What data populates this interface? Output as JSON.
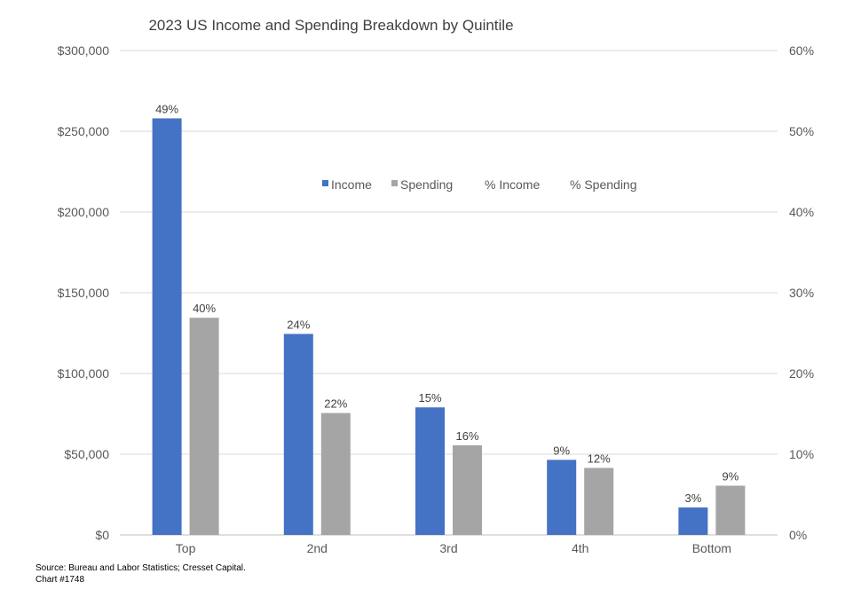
{
  "chart_data": {
    "type": "bar",
    "title": "2023 US Income and Spending Breakdown by Quintile",
    "categories": [
      "Top",
      "2nd",
      "3rd",
      "4th",
      "Bottom"
    ],
    "series": [
      {
        "name": "Income",
        "values": [
          258000,
          124500,
          79000,
          46500,
          17000
        ],
        "color": "#4472C4"
      },
      {
        "name": "Spending",
        "values": [
          134500,
          75500,
          55500,
          41500,
          30500
        ],
        "color": "#A5A5A5"
      }
    ],
    "secondary_series": [
      {
        "name": "% Income",
        "values": [
          49,
          24,
          15,
          9,
          3
        ],
        "shown_as": "data labels on Income bars"
      },
      {
        "name": "% Spending",
        "values": [
          40,
          22,
          16,
          12,
          9
        ],
        "shown_as": "data labels on Spending bars"
      }
    ],
    "data_labels": {
      "Income": [
        "49%",
        "24%",
        "15%",
        "9%",
        "3%"
      ],
      "Spending": [
        "40%",
        "22%",
        "16%",
        "12%",
        "9%"
      ]
    },
    "ylim": [
      0,
      300000
    ],
    "y_ticks": [
      0,
      50000,
      100000,
      150000,
      200000,
      250000,
      300000
    ],
    "y_tick_labels": [
      "$0",
      "$50,000",
      "$100,000",
      "$150,000",
      "$200,000",
      "$250,000",
      "$300,000"
    ],
    "y2lim": [
      0,
      60
    ],
    "y2_ticks": [
      0,
      10,
      20,
      30,
      40,
      50,
      60
    ],
    "y2_tick_labels": [
      "0%",
      "10%",
      "20%",
      "30%",
      "40%",
      "50%",
      "60%"
    ],
    "xlabel": "",
    "ylabel": "",
    "grid": true,
    "legend": {
      "placement": "top-center",
      "entries": [
        {
          "name": "Income",
          "marker": true,
          "color": "#4472C4"
        },
        {
          "name": "Spending",
          "marker": true,
          "color": "#A5A5A5"
        },
        {
          "name": "% Income",
          "marker": false
        },
        {
          "name": "% Spending",
          "marker": false
        }
      ]
    }
  },
  "footer": {
    "source_line": "Source: Bureau and Labor Statistics; Cresset Capital.",
    "chart_id": "Chart #1748"
  }
}
